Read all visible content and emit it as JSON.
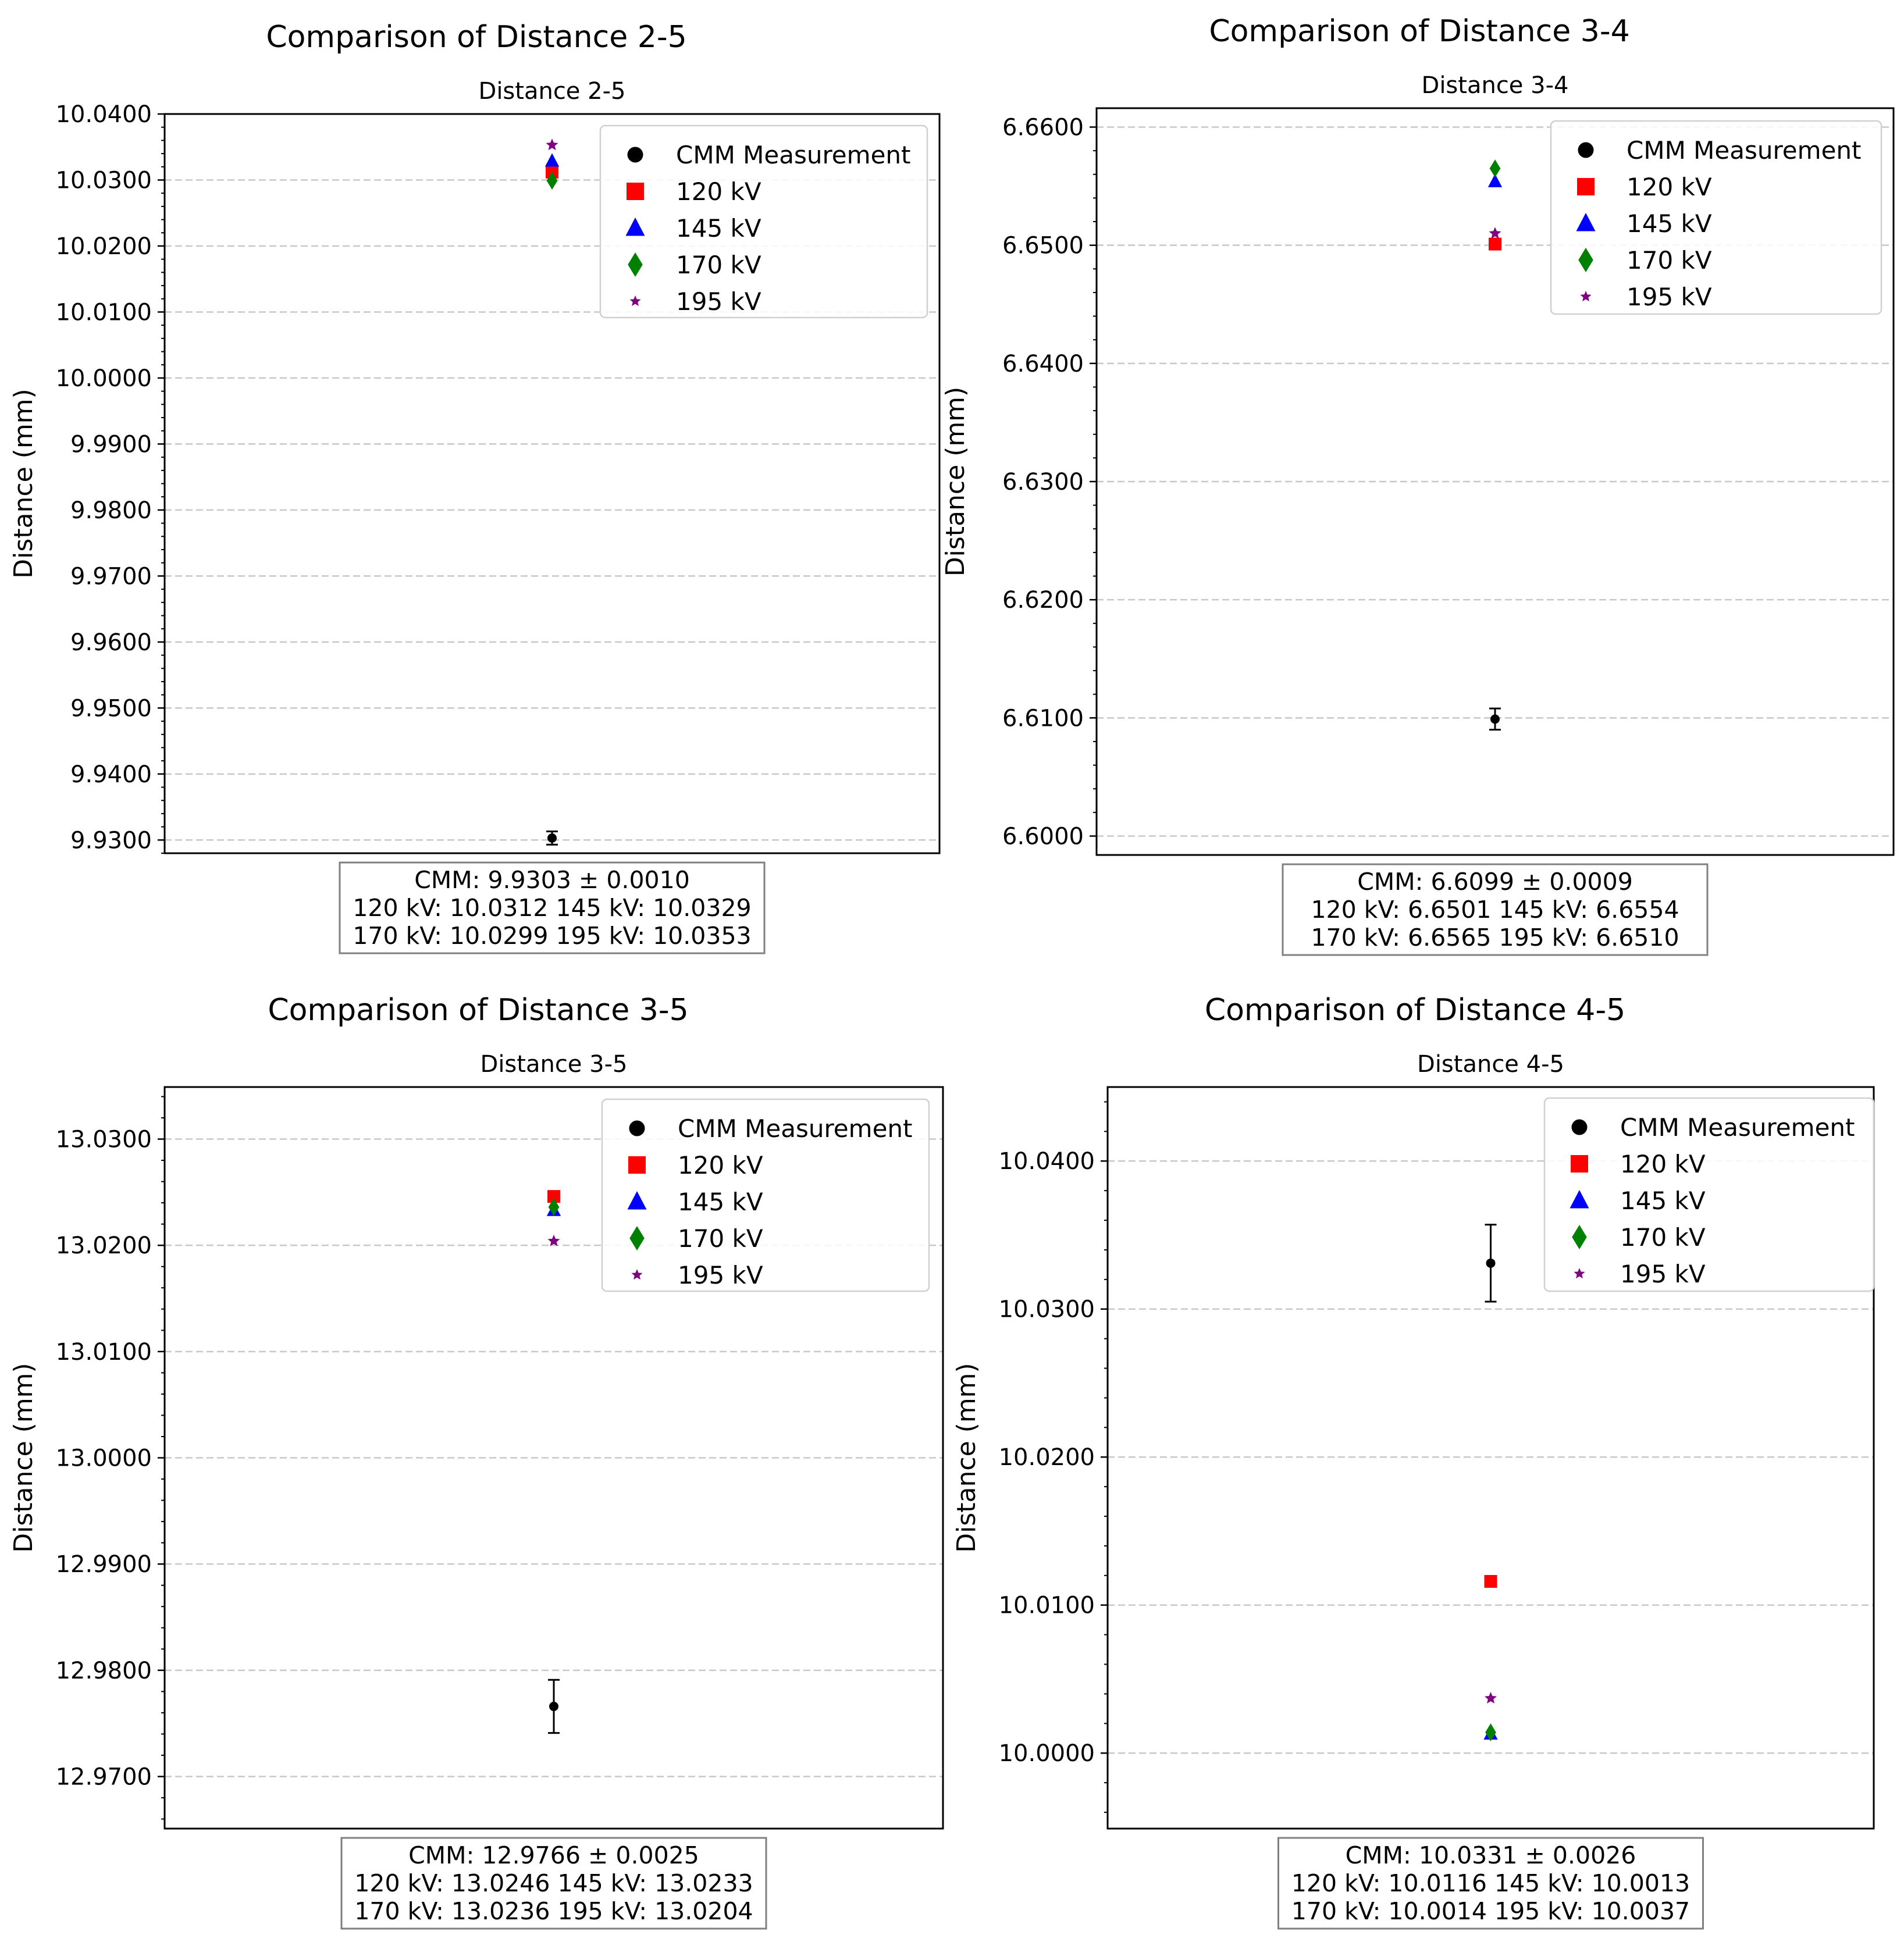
{
  "chart_data": [
    {
      "type": "scatter",
      "suptitle": "Comparison of Distance 2-5",
      "title": "Distance 2-5",
      "xlabel": "",
      "ylabel": "Distance (mm)",
      "ylim": [
        9.928,
        10.04
      ],
      "ytick_values": [
        9.93,
        9.94,
        9.95,
        9.96,
        9.97,
        9.98,
        9.99,
        10.0,
        10.01,
        10.02,
        10.03,
        10.04
      ],
      "ytick_labels": [
        "9.9300",
        "9.9400",
        "9.9500",
        "9.9600",
        "9.9700",
        "9.9800",
        "9.9900",
        "10.0000",
        "10.0100",
        "10.0200",
        "10.0300",
        "10.0400"
      ],
      "grid": true,
      "legend_position": "top-right",
      "cmm": {
        "name": "CMM Measurement",
        "value": 9.9303,
        "error": 0.001
      },
      "series": [
        {
          "name": "120 kV",
          "value": 10.0312,
          "marker": "square",
          "color": "#ff0000"
        },
        {
          "name": "145 kV",
          "value": 10.0329,
          "marker": "triangle",
          "color": "#0000ff"
        },
        {
          "name": "170 kV",
          "value": 10.0299,
          "marker": "diamond",
          "color": "#008000"
        },
        {
          "name": "195 kV",
          "value": 10.0353,
          "marker": "star",
          "color": "#800080"
        }
      ],
      "summary": [
        "CMM: 9.9303 ± 0.0010",
        "120 kV: 10.0312 145 kV: 10.0329",
        "170 kV: 10.0299 195 kV: 10.0353"
      ]
    },
    {
      "type": "scatter",
      "suptitle": "Comparison of Distance 3-4",
      "title": "Distance 3-4",
      "xlabel": "",
      "ylabel": "Distance (mm)",
      "ylim": [
        6.5984,
        6.6616
      ],
      "ytick_values": [
        6.6,
        6.61,
        6.62,
        6.63,
        6.64,
        6.65,
        6.66
      ],
      "ytick_labels": [
        "6.6000",
        "6.6100",
        "6.6200",
        "6.6300",
        "6.6400",
        "6.6500",
        "6.6600"
      ],
      "grid": true,
      "legend_position": "top-right",
      "cmm": {
        "name": "CMM Measurement",
        "value": 6.6099,
        "error": 0.0009
      },
      "series": [
        {
          "name": "120 kV",
          "value": 6.6501,
          "marker": "square",
          "color": "#ff0000"
        },
        {
          "name": "145 kV",
          "value": 6.6554,
          "marker": "triangle",
          "color": "#0000ff"
        },
        {
          "name": "170 kV",
          "value": 6.6565,
          "marker": "diamond",
          "color": "#008000"
        },
        {
          "name": "195 kV",
          "value": 6.651,
          "marker": "star",
          "color": "#800080"
        }
      ],
      "summary": [
        "CMM: 6.6099 ± 0.0009",
        "120 kV: 6.6501 145 kV: 6.6554",
        "170 kV: 6.6565 195 kV: 6.6510"
      ]
    },
    {
      "type": "scatter",
      "suptitle": "Comparison of Distance 3-5",
      "title": "Distance 3-5",
      "xlabel": "",
      "ylabel": "Distance (mm)",
      "ylim": [
        12.9651,
        13.0349
      ],
      "ytick_values": [
        12.97,
        12.98,
        12.99,
        13.0,
        13.01,
        13.02,
        13.03
      ],
      "ytick_labels": [
        "12.9700",
        "12.9800",
        "12.9900",
        "13.0000",
        "13.0100",
        "13.0200",
        "13.0300"
      ],
      "grid": true,
      "legend_position": "top-right",
      "cmm": {
        "name": "CMM Measurement",
        "value": 12.9766,
        "error": 0.0025
      },
      "series": [
        {
          "name": "120 kV",
          "value": 13.0246,
          "marker": "square",
          "color": "#ff0000"
        },
        {
          "name": "145 kV",
          "value": 13.0233,
          "marker": "triangle",
          "color": "#0000ff"
        },
        {
          "name": "170 kV",
          "value": 13.0236,
          "marker": "diamond",
          "color": "#008000"
        },
        {
          "name": "195 kV",
          "value": 13.0204,
          "marker": "star",
          "color": "#800080"
        }
      ],
      "summary": [
        "CMM: 12.9766 ± 0.0025",
        "120 kV: 13.0246 145 kV: 13.0233",
        "170 kV: 13.0236 195 kV: 13.0204"
      ]
    },
    {
      "type": "scatter",
      "suptitle": "Comparison of Distance 4-5",
      "title": "Distance 4-5",
      "xlabel": "",
      "ylabel": "Distance (mm)",
      "ylim": [
        9.9949,
        10.045
      ],
      "ytick_values": [
        10.0,
        10.01,
        10.02,
        10.03,
        10.04
      ],
      "ytick_labels": [
        "10.0000",
        "10.0100",
        "10.0200",
        "10.0300",
        "10.0400"
      ],
      "grid": true,
      "legend_position": "top-right",
      "cmm": {
        "name": "CMM Measurement",
        "value": 10.0331,
        "error": 0.0026
      },
      "series": [
        {
          "name": "120 kV",
          "value": 10.0116,
          "marker": "square",
          "color": "#ff0000"
        },
        {
          "name": "145 kV",
          "value": 10.0013,
          "marker": "triangle",
          "color": "#0000ff"
        },
        {
          "name": "170 kV",
          "value": 10.0014,
          "marker": "diamond",
          "color": "#008000"
        },
        {
          "name": "195 kV",
          "value": 10.0037,
          "marker": "star",
          "color": "#800080"
        }
      ],
      "summary": [
        "CMM: 10.0331 ± 0.0026",
        "120 kV: 10.0116 145 kV: 10.0013",
        "170 kV: 10.0014 195 kV: 10.0037"
      ]
    }
  ]
}
